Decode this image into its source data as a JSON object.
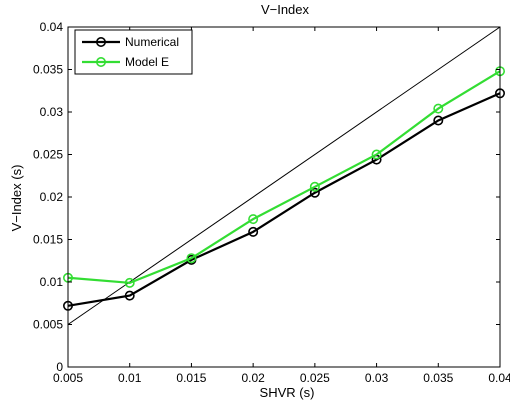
{
  "chart_data": {
    "type": "line",
    "title": "V−Index",
    "xlabel": "SHVR (s)",
    "ylabel": "V−Index (s)",
    "xlim": [
      0.005,
      0.04
    ],
    "ylim": [
      0,
      0.04
    ],
    "x_ticks": [
      0.005,
      0.01,
      0.015,
      0.02,
      0.025,
      0.03,
      0.035,
      0.04
    ],
    "x_tick_labels": [
      "0.005",
      "0.01",
      "0.015",
      "0.02",
      "0.025",
      "0.03",
      "0.035",
      "0.04"
    ],
    "y_ticks": [
      0,
      0.005,
      0.01,
      0.015,
      0.02,
      0.025,
      0.03,
      0.035,
      0.04
    ],
    "y_tick_labels": [
      "0",
      "0.005",
      "0.01",
      "0.015",
      "0.02",
      "0.025",
      "0.03",
      "0.035",
      "0.04"
    ],
    "grid": false,
    "legend_position": "top-left",
    "x": [
      0.005,
      0.01,
      0.015,
      0.02,
      0.025,
      0.03,
      0.035,
      0.04
    ],
    "series": [
      {
        "name": "Numerical",
        "color": "#000000",
        "marker": "circle",
        "values": [
          0.0072,
          0.0084,
          0.0126,
          0.0159,
          0.0205,
          0.0244,
          0.029,
          0.0322
        ]
      },
      {
        "name": "Model E",
        "color": "#33dd33",
        "marker": "circle",
        "values": [
          0.0105,
          0.0099,
          0.0128,
          0.0174,
          0.0212,
          0.025,
          0.0304,
          0.0348
        ]
      }
    ],
    "reference_line": {
      "color": "#000000",
      "points": [
        [
          0.005,
          0.005
        ],
        [
          0.04,
          0.04
        ]
      ]
    }
  }
}
